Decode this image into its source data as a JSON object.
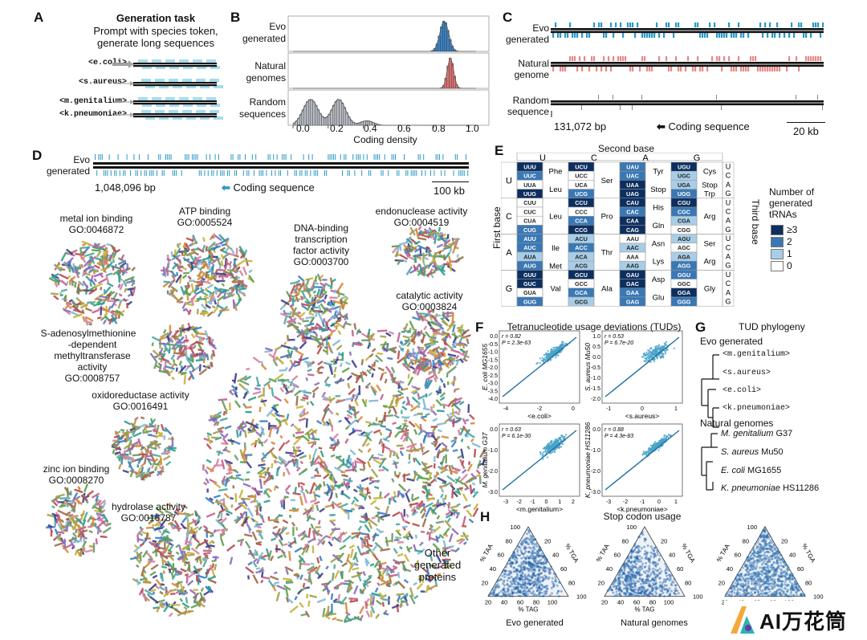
{
  "panels": {
    "A": "A",
    "B": "B",
    "C": "C",
    "D": "D",
    "E": "E",
    "F": "F",
    "G": "G",
    "H": "H"
  },
  "A": {
    "title": "Generation task",
    "subtitle1": "Prompt with species token,",
    "subtitle2": "generate long sequences",
    "tokens": [
      "<e.coli>",
      "<s.aureus>",
      "<m.genitalium>",
      "<k.pneumoniae>"
    ]
  },
  "B": {
    "rows": [
      {
        "label1": "Evo",
        "label2": "generated",
        "color": "#3b82c4"
      },
      {
        "label1": "Natural",
        "label2": "genomes",
        "color": "#e07070"
      },
      {
        "label1": "Random",
        "label2": "sequences",
        "color": "#b8bcc4"
      }
    ],
    "xticks": [
      "0.0",
      "0.2",
      "0.4",
      "0.6",
      "0.8",
      "1.0"
    ],
    "xlabel": "Coding density"
  },
  "C": {
    "rows": [
      {
        "label1": "Evo",
        "label2": "generated",
        "color": "#2b9ac8"
      },
      {
        "label1": "Natural",
        "label2": "genome",
        "color": "#e88888"
      },
      {
        "label1": "Random",
        "label2": "sequence",
        "color": "#777777"
      }
    ],
    "bp": "131,072 bp",
    "coding": "Coding sequence",
    "scale": "20 kb"
  },
  "D": {
    "label1": "Evo",
    "label2": "generated",
    "bp": "1,048,096 bp",
    "coding": "Coding sequence",
    "scale": "100 kb",
    "clusters": [
      {
        "name": "metal ion binding",
        "go": "GO:0046872"
      },
      {
        "name": "ATP binding",
        "go": "GO:0005524"
      },
      {
        "name1": "DNA-binding",
        "name2": "transcription",
        "name3": "factor activity",
        "go": "GO:0003700"
      },
      {
        "name": "endonuclease activity",
        "go": "GO:0004519"
      },
      {
        "name": "catalytic activity",
        "go": "GO:0003824"
      },
      {
        "name1": "S-adenosylmethionine",
        "name2": "-dependent",
        "name3": "methyltransferase",
        "name4": "activity",
        "go": "GO:0008757"
      },
      {
        "name": "oxidoreductase activity",
        "go": "GO:0016491"
      },
      {
        "name": "zinc ion binding",
        "go": "GO:0008270"
      },
      {
        "name": "hydrolase activity",
        "go": "GO:0016787"
      },
      {
        "name1": "Other",
        "name2": "generated",
        "name3": "proteins"
      }
    ]
  },
  "E": {
    "title": "Second base",
    "first_base": "First base",
    "third_base": "Third base",
    "bases": [
      "U",
      "C",
      "A",
      "G"
    ],
    "codons": [
      [
        [
          "UUU",
          "UUC",
          "UUA",
          "UUG"
        ],
        [
          "UCU",
          "UCC",
          "UCA",
          "UCG"
        ],
        [
          "UAU",
          "UAC",
          "UAA",
          "UAG"
        ],
        [
          "UGU",
          "UGC",
          "UGA",
          "UGG"
        ]
      ],
      [
        [
          "CUU",
          "CUC",
          "CUA",
          "CUG"
        ],
        [
          "CCU",
          "CCC",
          "CCA",
          "CCG"
        ],
        [
          "CAU",
          "CAC",
          "CAA",
          "CAG"
        ],
        [
          "CGU",
          "CGC",
          "CGA",
          "CGG"
        ]
      ],
      [
        [
          "AUU",
          "AUC",
          "AUA",
          "AUG"
        ],
        [
          "ACU",
          "ACC",
          "ACA",
          "ACG"
        ],
        [
          "AAU",
          "AAC",
          "AAA",
          "AAG"
        ],
        [
          "AGU",
          "AGC",
          "AGA",
          "AGG"
        ]
      ],
      [
        [
          "GUU",
          "GUC",
          "GUA",
          "GUG"
        ],
        [
          "GCU",
          "GCC",
          "GCA",
          "GCG"
        ],
        [
          "GAU",
          "GAC",
          "GAA",
          "GAG"
        ],
        [
          "GGU",
          "GGC",
          "GGA",
          "GGG"
        ]
      ]
    ],
    "levels": [
      [
        [
          3,
          2,
          0,
          3
        ],
        [
          3,
          0,
          0,
          2
        ],
        [
          2,
          2,
          3,
          3
        ],
        [
          3,
          1,
          1,
          2
        ]
      ],
      [
        [
          0,
          0,
          0,
          2
        ],
        [
          3,
          0,
          2,
          3
        ],
        [
          3,
          2,
          3,
          3
        ],
        [
          3,
          2,
          1,
          0
        ]
      ],
      [
        [
          2,
          2,
          1,
          2
        ],
        [
          1,
          2,
          1,
          1
        ],
        [
          0,
          1,
          0,
          1
        ],
        [
          1,
          0,
          1,
          2
        ]
      ],
      [
        [
          3,
          3,
          0,
          2
        ],
        [
          3,
          0,
          2,
          1
        ],
        [
          3,
          3,
          2,
          2
        ],
        [
          2,
          0,
          3,
          2
        ]
      ]
    ],
    "aa": [
      [
        [
          {
            "t": "Phe",
            "span": 2
          },
          {
            "t": "Leu",
            "span": 2
          }
        ],
        [
          {
            "t": "Ser",
            "span": 4
          }
        ],
        [
          {
            "t": "Tyr",
            "span": 2
          },
          {
            "t": "Stop",
            "span": 2
          }
        ],
        [
          {
            "t": "Cys",
            "span": 2
          },
          {
            "t": "Stop",
            "span": 1
          },
          {
            "t": "Trp",
            "span": 1
          }
        ]
      ],
      [
        [
          {
            "t": "Leu",
            "span": 4
          }
        ],
        [
          {
            "t": "Pro",
            "span": 4
          }
        ],
        [
          {
            "t": "His",
            "span": 2
          },
          {
            "t": "Gln",
            "span": 2
          }
        ],
        [
          {
            "t": "Arg",
            "span": 4
          }
        ]
      ],
      [
        [
          {
            "t": "Ile",
            "span": 3
          },
          {
            "t": "Met",
            "span": 1
          }
        ],
        [
          {
            "t": "Thr",
            "span": 4
          }
        ],
        [
          {
            "t": "Asn",
            "span": 2
          },
          {
            "t": "Lys",
            "span": 2
          }
        ],
        [
          {
            "t": "Ser",
            "span": 2
          },
          {
            "t": "Arg",
            "span": 2
          }
        ]
      ],
      [
        [
          {
            "t": "Val",
            "span": 4
          }
        ],
        [
          {
            "t": "Ala",
            "span": 4
          }
        ],
        [
          {
            "t": "Asp",
            "span": 2
          },
          {
            "t": "Glu",
            "span": 2
          }
        ],
        [
          {
            "t": "Gly",
            "span": 4
          }
        ]
      ]
    ],
    "legend_title": [
      "Number of",
      "generated",
      "tRNAs"
    ],
    "legend_items": [
      "≥3",
      "2",
      "1",
      "0"
    ],
    "legend_colors": [
      "#0d2f5f",
      "#3a78b4",
      "#a9cde6",
      "#ffffff"
    ]
  },
  "F": {
    "title": "Tetranucleotide usage deviations (TUDs)",
    "plots": [
      {
        "ylabel": "E. coli MG1655",
        "xlabel": "<e.coli>",
        "r": "r = 0.82",
        "p": "P = 2.3e-63",
        "xticks": [
          "-4",
          "-2",
          "0"
        ],
        "yticks": [
          "0.0",
          "-0.5",
          "-1.0",
          "-1.5",
          "-2.0",
          "-2.5",
          "-3.0",
          "-3.5",
          "-4.0"
        ]
      },
      {
        "ylabel": "S. aureus Mu50",
        "xlabel": "<s.aureus>",
        "r": "r = 0.53",
        "p": "P = 6.7e-20",
        "xticks": [
          "-1",
          "0",
          "1"
        ],
        "yticks": [
          "1.0",
          "0.5",
          "0.0",
          "-0.5",
          "-1.0",
          "-1.5",
          "-2.0"
        ]
      },
      {
        "ylabel": "M. genitalium G37",
        "xlabel": "<m.genitalium>",
        "r": "r = 0.63",
        "p": "P = 6.1e-30",
        "xticks": [
          "-3",
          "-2",
          "-1",
          "0",
          "1",
          "2"
        ],
        "yticks": [
          "0.0",
          "-1.0",
          "-2.0",
          "-3.0"
        ]
      },
      {
        "ylabel": "K. pneumoniae HS11286",
        "xlabel": "<k.pneumoniae>",
        "r": "r = 0.88",
        "p": "P = 4.3e-83",
        "xticks": [
          "-3",
          "-2",
          "-1",
          "0",
          "1"
        ],
        "yticks": [
          "0.0",
          "-1.0",
          "-2.0",
          "-3.0"
        ]
      }
    ]
  },
  "G": {
    "title": "TUD phylogeny",
    "evo_title": "Evo generated",
    "evo_leaves": [
      "<m.genitalium>",
      "<s.aureus>",
      "<e.coli>",
      "<k.pneumoniae>"
    ],
    "nat_title": "Natural genomes",
    "nat_leaves": [
      {
        "sp": "M. genitalium",
        "st": "G37"
      },
      {
        "sp": "S. aureus",
        "st": "Mu50"
      },
      {
        "sp": "E. coli",
        "st": "MG1655"
      },
      {
        "sp": "K. pneumoniae",
        "st": "HS11286"
      }
    ]
  },
  "H": {
    "title": "Stop codon usage",
    "ticks": [
      "100",
      "80",
      "60",
      "40",
      "20"
    ],
    "axis_left": "% TAA",
    "axis_right": "% TGA",
    "axis_bottom": "% TAG",
    "captions": [
      "Evo generated",
      "Natural genomes",
      ""
    ]
  },
  "watermark": "AI万花筒"
}
